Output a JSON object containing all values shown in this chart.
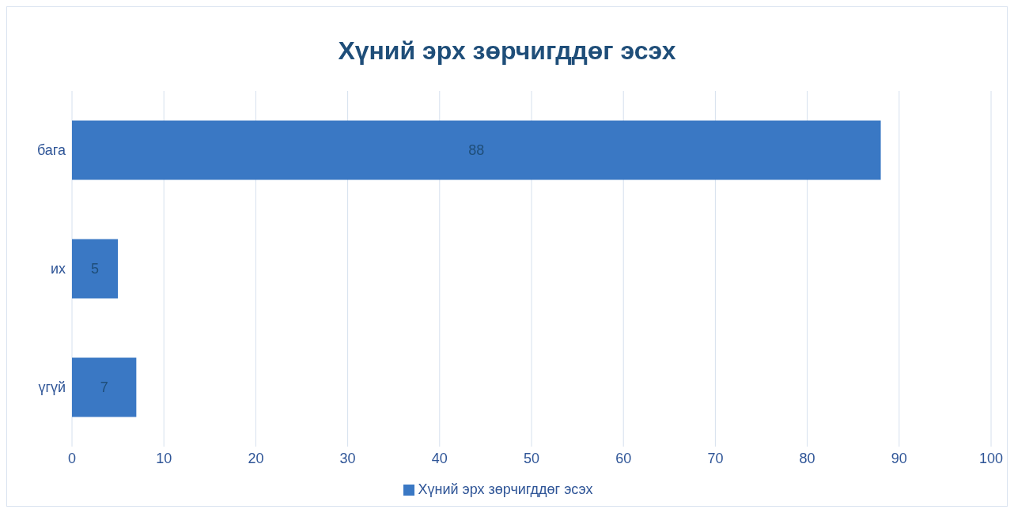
{
  "chart_data": {
    "type": "bar",
    "orientation": "horizontal",
    "title": "Хүний эрх зөрчигддөг эсэх",
    "categories": [
      "бага",
      "их",
      "үгүй"
    ],
    "series": [
      {
        "name": "Хүний эрх зөрчигддөг эсэх",
        "color": "#3a78c4",
        "values": [
          88,
          5,
          7
        ]
      }
    ],
    "xlim": [
      0,
      100
    ],
    "xticks": [
      0,
      10,
      20,
      30,
      40,
      50,
      60,
      70,
      80,
      90,
      100
    ],
    "grid": "x",
    "legend": "bottom",
    "data_labels": true
  }
}
